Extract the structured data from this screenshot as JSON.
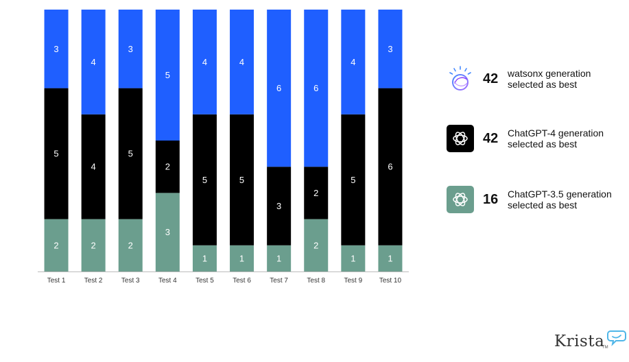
{
  "chart_data": {
    "type": "bar",
    "stacked": true,
    "categories": [
      "Test 1",
      "Test 2",
      "Test 3",
      "Test 4",
      "Test 5",
      "Test 6",
      "Test 7",
      "Test 8",
      "Test 9",
      "Test 10"
    ],
    "series": [
      {
        "values": [
          2,
          2,
          2,
          3,
          1,
          1,
          1,
          2,
          1,
          1
        ],
        "color": "#6b9e8e"
      },
      {
        "values": [
          5,
          4,
          5,
          2,
          5,
          5,
          3,
          2,
          5,
          6
        ],
        "color": "#000000"
      },
      {
        "values": [
          3,
          4,
          3,
          5,
          4,
          4,
          6,
          6,
          4,
          3
        ],
        "color": "#1f5fff"
      }
    ],
    "ylim": [
      0,
      10
    ],
    "grid": false,
    "legend_position": "right"
  },
  "legend": [
    {
      "count": "42",
      "line1": "watsonx generation",
      "line2": "selected as best",
      "icon": "watsonx-icon"
    },
    {
      "count": "42",
      "line1": "ChatGPT-4 generation",
      "line2": "selected as best",
      "icon": "chatgpt4-icon",
      "color": "#000000"
    },
    {
      "count": "16",
      "line1": "ChatGPT-3.5 generation",
      "line2": "selected as best",
      "icon": "chatgpt35-icon",
      "color": "#6b9e8e"
    }
  ],
  "brand": {
    "name": "Krista",
    "tm": "TM",
    "icon": "chat-bubble-icon"
  }
}
